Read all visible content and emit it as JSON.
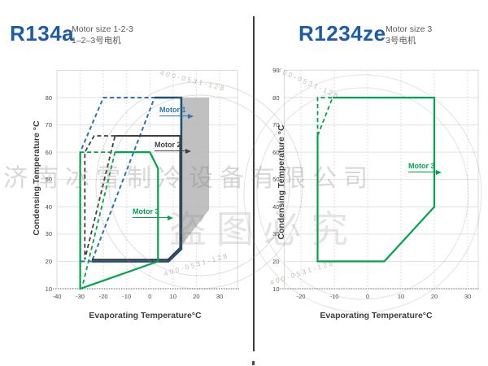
{
  "header": {
    "left": {
      "title": "R134a",
      "subtitle_en": "Motor size 1-2-3",
      "subtitle_cn": "1–2–3号电机"
    },
    "right": {
      "title": "R1234ze",
      "subtitle_en": "Motor size 3",
      "subtitle_cn": "3号电机"
    }
  },
  "watermark": {
    "company": "济南冰雪制冷设备有限公司",
    "warning": "盗图必究",
    "phone": "400-0531-128"
  },
  "chart_data": [
    {
      "id": "r134a",
      "type": "line",
      "title": "R134a",
      "xlabel": "Evaporating Temperature°C",
      "ylabel": "Condensing Temperature °C",
      "xlim": [
        -40,
        37
      ],
      "ylim": [
        10,
        90
      ],
      "grid": true,
      "x_ticks": [
        -40,
        -30,
        -20,
        -10,
        0,
        10,
        20,
        30
      ],
      "y_ticks": [
        10,
        20,
        30,
        40,
        50,
        60,
        70,
        80
      ],
      "regions": [
        {
          "name": "shaded-restricted-region",
          "color": "#b5b5b5",
          "opacity": 0.85,
          "points": [
            [
              13.8,
              80
            ],
            [
              25.5,
              80
            ],
            [
              25.5,
              39
            ],
            [
              13.8,
              26
            ]
          ]
        }
      ],
      "series": [
        {
          "name": "motor1-envelope-extension-dashed",
          "motor": "Motor 1",
          "style": "dashed",
          "color": "#2e74b5",
          "width": 2,
          "points": [
            [
              -25,
              20
            ],
            [
              -30,
              20
            ],
            [
              -30,
              60
            ],
            [
              -20,
              80
            ],
            [
              2,
              80
            ],
            [
              -25,
              20
            ]
          ]
        },
        {
          "name": "motor2-envelope-extension-dashed",
          "motor": "Motor 2",
          "style": "dashed",
          "color": "#3f3f3f",
          "width": 1.8,
          "points": [
            [
              -15,
              66
            ],
            [
              -24,
              66
            ],
            [
              -28,
              60
            ],
            [
              -28,
              20.7
            ],
            [
              -15,
              66
            ]
          ]
        },
        {
          "name": "motor3-envelope-extension-dashed",
          "motor": "Motor 3",
          "style": "dashed",
          "color": "#00a44a",
          "width": 1.8,
          "points": [
            [
              -30,
              60
            ],
            [
              -15,
              60
            ],
            [
              -29,
              11
            ]
          ]
        },
        {
          "name": "motor1-envelope-solid",
          "motor": "Motor 1",
          "style": "solid",
          "color": "#1f4e79",
          "width": 2.6,
          "points": [
            [
              2,
              80
            ],
            [
              13.5,
              80
            ],
            [
              13.5,
              24.5
            ],
            [
              8,
              20
            ],
            [
              -25,
              20
            ]
          ]
        },
        {
          "name": "motor2-envelope-solid",
          "motor": "Motor 2",
          "style": "solid",
          "color": "#3f3f3f",
          "width": 2,
          "points": [
            [
              -15,
              66
            ],
            [
              13,
              66
            ],
            [
              13,
              25
            ],
            [
              7.8,
              20.7
            ],
            [
              -25,
              20.7
            ]
          ]
        },
        {
          "name": "motor3-envelope-solid",
          "motor": "Motor 3",
          "style": "solid",
          "color": "#00a44a",
          "width": 2.2,
          "points": [
            [
              -15,
              60
            ],
            [
              0,
              60
            ],
            [
              3.5,
              54
            ],
            [
              3.5,
              20
            ],
            [
              -30,
              10
            ],
            [
              -30,
              60
            ]
          ]
        }
      ],
      "annotations": [
        {
          "text": "Motor 1",
          "x": 4,
          "y": 73,
          "arrow_to_x": 16.5
        },
        {
          "text": "Motor 2",
          "x": 2,
          "y": 60.3,
          "arrow_to_x": 15.3
        },
        {
          "text": "Motor 3",
          "x": -7.4,
          "y": 35.9,
          "arrow_to_x": 8.3
        }
      ]
    },
    {
      "id": "r1234ze",
      "type": "line",
      "title": "R1234ze",
      "xlabel": "Evaporating Temperature°C",
      "ylabel": "Condensing Temperature °C",
      "xlim": [
        -25,
        33
      ],
      "ylim": [
        10,
        90
      ],
      "grid": true,
      "x_ticks": [
        -20,
        -10,
        0,
        10,
        20,
        30
      ],
      "y_ticks": [
        10,
        20,
        30,
        40,
        50,
        60,
        70,
        80,
        90
      ],
      "regions": [],
      "series": [
        {
          "name": "motor3-envelope-extension-dashed",
          "motor": "Motor 3",
          "style": "dashed",
          "color": "#00a44a",
          "width": 1.8,
          "points": [
            [
              -15,
              66
            ],
            [
              -15,
              80
            ],
            [
              -10.5,
              80
            ],
            [
              -15,
              66
            ]
          ]
        },
        {
          "name": "motor3-envelope-solid",
          "motor": "Motor 3",
          "style": "solid",
          "color": "#00a44a",
          "width": 2.2,
          "points": [
            [
              -10.5,
              80
            ],
            [
              20,
              80
            ],
            [
              20,
              40
            ],
            [
              5,
              20
            ],
            [
              -15,
              20
            ],
            [
              -15,
              66
            ]
          ]
        }
      ],
      "annotations": [
        {
          "text": "Motor 3",
          "x": 12.2,
          "y": 52,
          "arrow_to_x": 20.7
        }
      ]
    }
  ]
}
